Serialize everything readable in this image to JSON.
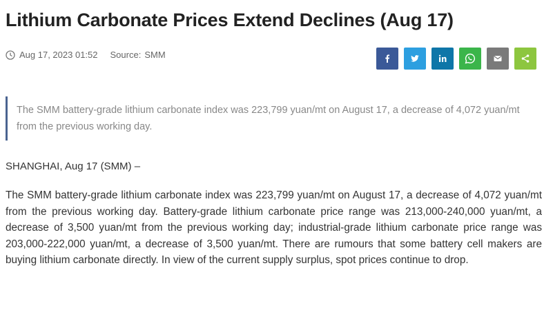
{
  "article": {
    "title": "Lithium Carbonate Prices Extend Declines (Aug 17)",
    "date": "Aug 17, 2023 01:52",
    "source_label": "Source:",
    "source": "SMM",
    "summary": "The SMM battery-grade lithium carbonate index was 223,799 yuan/mt on August 17, a decrease of 4,072 yuan/mt from the previous working day.",
    "dateline": "SHANGHAI, Aug 17 (SMM) –",
    "body": "The SMM battery-grade lithium carbonate index was 223,799 yuan/mt on August 17, a decrease of 4,072 yuan/mt from the previous working day. Battery-grade lithium carbonate price range was 213,000-240,000 yuan/mt, a decrease of 3,500 yuan/mt from the previous working day; industrial-grade lithium carbonate price range was 203,000-222,000 yuan/mt, a decrease of 3,500 yuan/mt. There are rumours that some battery cell makers are buying lithium carbonate directly. In view of the current supply surplus, spot prices continue to drop."
  }
}
